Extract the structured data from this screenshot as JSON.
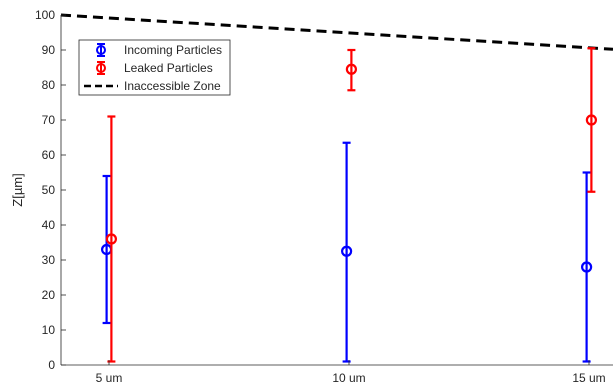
{
  "chart_data": {
    "type": "errorbar",
    "categories": [
      "5 um",
      "10 um",
      "15 um"
    ],
    "ylabel": "Z[µm]",
    "xlabel": "",
    "title": "",
    "ylim": [
      0,
      100
    ],
    "yticks": [
      0,
      10,
      20,
      30,
      40,
      50,
      60,
      70,
      80,
      90,
      100
    ],
    "legend_position": "top-left",
    "grid": false,
    "series": [
      {
        "name": "Incoming Particles",
        "color": "#0000ff",
        "marker": "circle",
        "points": [
          {
            "x": 4.95,
            "y": 33,
            "low": 12,
            "high": 54
          },
          {
            "x": 9.95,
            "y": 32.5,
            "low": 1,
            "high": 63.5
          },
          {
            "x": 14.95,
            "y": 28,
            "low": 1,
            "high": 55
          }
        ]
      },
      {
        "name": "Leaked Particles",
        "color": "#ff0000",
        "marker": "circle",
        "points": [
          {
            "x": 5.05,
            "y": 36,
            "low": 1,
            "high": 71
          },
          {
            "x": 10.05,
            "y": 84.5,
            "low": 78.5,
            "high": 90
          },
          {
            "x": 15.05,
            "y": 70,
            "low": 49.5,
            "high": 90.5
          }
        ]
      }
    ],
    "reference_line": {
      "name": "Inaccessible Zone",
      "color": "#000000",
      "style": "dashed",
      "x": [
        4,
        15.5
      ],
      "y": [
        100,
        90.2
      ]
    },
    "x_category_positions": [
      5,
      10,
      15
    ],
    "xlim": [
      4,
      15.5
    ]
  }
}
